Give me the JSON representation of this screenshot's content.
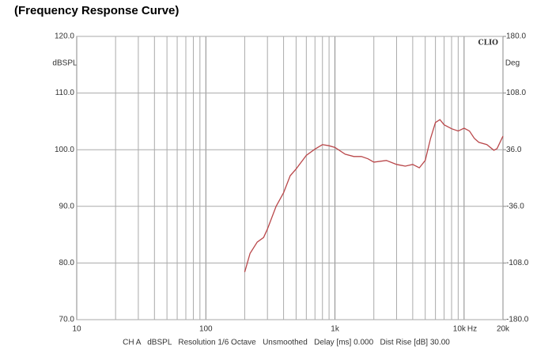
{
  "chart_data": {
    "type": "line",
    "title": "(Frequency Response Curve)",
    "y_label": "dBSPL",
    "y2_label": "Deg",
    "brand": "CLIO",
    "x_unit": "Hz",
    "footer": "CH A   dBSPL   Resolution 1/6 Octave   Unsmoothed   Delay [ms] 0.000   Dist Rise [dB] 30.00",
    "xscale": "log",
    "xlim": [
      10,
      20000
    ],
    "ylim": [
      70,
      120
    ],
    "y2lim": [
      -180,
      180
    ],
    "xticks": [
      10,
      100,
      {
        "value": 1000,
        "label": "1k"
      },
      {
        "value": 10000,
        "label": "10k"
      },
      {
        "value": 20000,
        "label": "20k"
      }
    ],
    "xgrid": [
      20,
      30,
      40,
      50,
      60,
      70,
      80,
      90,
      200,
      300,
      400,
      500,
      600,
      700,
      800,
      900,
      2000,
      3000,
      4000,
      5000,
      6000,
      7000,
      8000,
      9000
    ],
    "yticks": [
      {
        "value": 70,
        "label": "70.0"
      },
      {
        "value": 80,
        "label": "80.0"
      },
      {
        "value": 90,
        "label": "90.0"
      },
      {
        "value": 100,
        "label": "100.0"
      },
      {
        "value": 110,
        "label": "110.0"
      },
      {
        "value": 120,
        "label": "120.0"
      }
    ],
    "y2ticks": [
      {
        "value": -180,
        "label": "-180.0"
      },
      {
        "value": -108,
        "label": "-108.0"
      },
      {
        "value": -36,
        "label": "-36.0"
      },
      {
        "value": 36,
        "label": "36.0"
      },
      {
        "value": 108,
        "label": "108.0"
      },
      {
        "value": 180,
        "label": "180.0"
      }
    ],
    "grid": true,
    "x": [
      200,
      220,
      250,
      280,
      300,
      350,
      400,
      450,
      500,
      600,
      700,
      800,
      900,
      1000,
      1200,
      1400,
      1600,
      1800,
      2000,
      2500,
      3000,
      3500,
      4000,
      4500,
      5000,
      5500,
      6000,
      6500,
      7000,
      8000,
      9000,
      10000,
      11000,
      12000,
      13000,
      15000,
      17000,
      18000,
      20000
    ],
    "series": [
      {
        "color": "#b9474a",
        "values": [
          78.4,
          81.7,
          83.7,
          84.5,
          86,
          90,
          92.4,
          95.4,
          96.6,
          99,
          100.1,
          100.9,
          100.7,
          100.4,
          99.2,
          98.8,
          98.8,
          98.4,
          97.8,
          98.1,
          97.4,
          97.1,
          97.4,
          96.8,
          98.1,
          102,
          104.8,
          105.3,
          104.4,
          103.7,
          103.3,
          103.8,
          103.3,
          102,
          101.3,
          100.9,
          99.9,
          100.2,
          102.4
        ]
      }
    ]
  }
}
